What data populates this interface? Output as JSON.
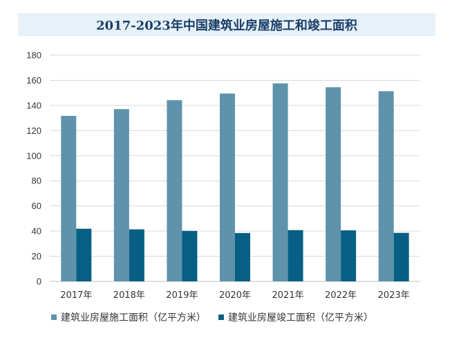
{
  "chart_data": {
    "type": "bar",
    "title": "2017-2023年中国建筑业房屋施工和竣工面积",
    "categories": [
      "2017年",
      "2018年",
      "2019年",
      "2020年",
      "2021年",
      "2022年",
      "2023年"
    ],
    "series": [
      {
        "name": "建筑业房屋施工面积（亿平方米）",
        "color": "#5e93ab",
        "values": [
          131.7,
          137.1,
          144.2,
          149.5,
          157.5,
          154.5,
          151.3
        ]
      },
      {
        "name": "建筑业房屋竣工面积（亿平方米）",
        "color": "#075f83",
        "values": [
          41.9,
          41.4,
          40.2,
          38.5,
          40.8,
          40.6,
          38.6
        ]
      }
    ],
    "yticks": [
      0,
      20,
      40,
      60,
      80,
      100,
      120,
      140,
      160,
      180
    ],
    "ylim": [
      0,
      180
    ],
    "grid": true,
    "legend_position": "bottom",
    "xlabel": "",
    "ylabel": ""
  }
}
